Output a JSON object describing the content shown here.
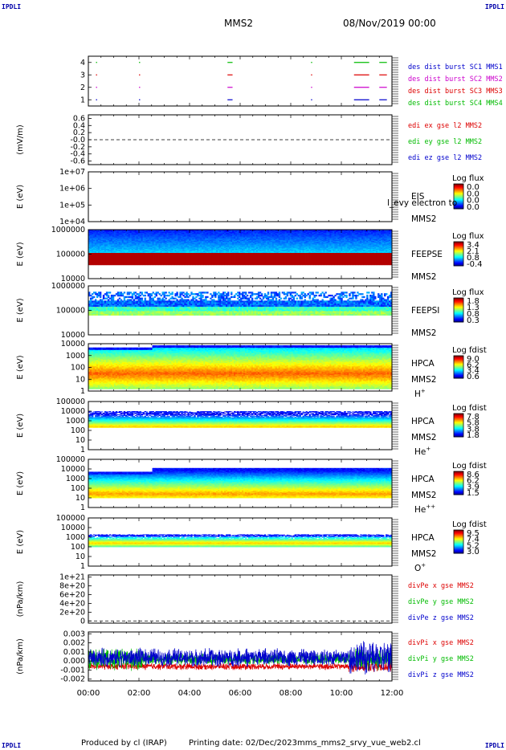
{
  "header": {
    "corner_tl": "IPDLI",
    "corner_tr": "IPDLI",
    "corner_bl": "IPDLI",
    "corner_br": "IPDLI",
    "spacecraft": "MMS2",
    "datetime": "08/Nov/2019 00:00"
  },
  "footer": {
    "producer": "Produced by cl (IRAP)",
    "printing_date": "Printing date: 02/Dec/2023",
    "filename": "mms_mms2_srvy_vue_web2.cl"
  },
  "time_axis": {
    "range_hours": [
      0,
      12
    ],
    "ticks": [
      "00:00",
      "02:00",
      "04:00",
      "06:00",
      "08:00",
      "10:00",
      "12:00"
    ]
  },
  "colors": {
    "blue": "#0000cc",
    "magenta": "#cc00cc",
    "red": "#dd0000",
    "green": "#00bb00"
  },
  "chart_data": [
    {
      "type": "scatter",
      "id": "burst",
      "ylim": [
        0.5,
        4.5
      ],
      "yticks": [
        "1",
        "2",
        "3",
        "4"
      ],
      "legend": [
        {
          "text": "des dist burst SC1 MMS1",
          "color": "#0000cc"
        },
        {
          "text": "des dist burst SC2 MMS2",
          "color": "#cc00cc"
        },
        {
          "text": "des dist burst SC3 MMS3",
          "color": "#dd0000"
        },
        {
          "text": "des dist burst SC4 MMS4",
          "color": "#00bb00"
        }
      ],
      "series": [
        {
          "level": 1,
          "color": "#0000cc",
          "intervals": [
            [
              0.3,
              0.33
            ],
            [
              2.0,
              2.03
            ],
            [
              5.5,
              5.7
            ],
            [
              8.8,
              8.83
            ],
            [
              10.5,
              11.1
            ],
            [
              11.5,
              11.8
            ]
          ]
        },
        {
          "level": 2,
          "color": "#cc00cc",
          "intervals": [
            [
              0.3,
              0.33
            ],
            [
              2.0,
              2.03
            ],
            [
              5.5,
              5.7
            ],
            [
              8.8,
              8.83
            ],
            [
              10.5,
              11.1
            ],
            [
              11.5,
              11.8
            ]
          ]
        },
        {
          "level": 3,
          "color": "#dd0000",
          "intervals": [
            [
              0.3,
              0.33
            ],
            [
              2.0,
              2.03
            ],
            [
              5.5,
              5.7
            ],
            [
              8.8,
              8.83
            ],
            [
              10.5,
              11.1
            ],
            [
              11.5,
              11.8
            ]
          ]
        },
        {
          "level": 4,
          "color": "#00bb00",
          "intervals": [
            [
              0.3,
              0.33
            ],
            [
              2.0,
              2.03
            ],
            [
              5.5,
              5.7
            ],
            [
              8.8,
              8.83
            ],
            [
              10.5,
              11.1
            ],
            [
              11.5,
              11.8
            ]
          ]
        }
      ]
    },
    {
      "type": "line",
      "id": "edi",
      "ylabel": "(mV/m)",
      "ylim": [
        -0.7,
        0.7
      ],
      "yticks": [
        "0.6",
        "0.4",
        "0.2",
        "-0.0",
        "-0.2",
        "-0.4",
        "-0.6"
      ],
      "ytick_values": [
        0.6,
        0.4,
        0.2,
        0,
        -0.2,
        -0.4,
        -0.6
      ],
      "legend": [
        {
          "text": "edi ex gse l2 MMS2",
          "color": "#dd0000"
        },
        {
          "text": "edi ey gse l2 MMS2",
          "color": "#00bb00"
        },
        {
          "text": "edi ez gse l2 MMS2",
          "color": "#0000cc"
        }
      ],
      "dashed_zero": true
    },
    {
      "type": "heatmap",
      "id": "eis",
      "ylabel": "E (eV)",
      "yticks": [
        "1e+07",
        "1e+06",
        "1e+05",
        "1e+04"
      ],
      "log_range": [
        4,
        7
      ],
      "label_lines": [
        "EIS",
        "MMS2"
      ],
      "overlay_text": "l_evy electron to",
      "colorbar": {
        "title": "Log flux",
        "ticks": [
          "0.0",
          "0.0",
          "0.0",
          "0.0"
        ]
      }
    },
    {
      "type": "heatmap",
      "id": "feepse",
      "ylabel": "E (eV)",
      "yticks": [
        "1000000",
        "100000",
        "10000"
      ],
      "log_range": [
        4,
        6
      ],
      "label_lines": [
        "FEEPSE",
        "MMS2"
      ],
      "colorbar": {
        "title": "Log flux",
        "ticks": [
          "3.4",
          "2.1",
          "0.8",
          "-0.4"
        ]
      }
    },
    {
      "type": "heatmap",
      "id": "feepsi",
      "ylabel": "E (eV)",
      "yticks": [
        "1000000",
        "100000",
        "10000"
      ],
      "log_range": [
        4,
        6
      ],
      "label_lines": [
        "FEEPSI",
        "MMS2"
      ],
      "colorbar": {
        "title": "Log flux",
        "ticks": [
          "1.8",
          "1.3",
          "0.8",
          "0.3"
        ]
      }
    },
    {
      "type": "heatmap",
      "id": "hpca_h",
      "ylabel": "E (eV)",
      "yticks": [
        "10000",
        "1000",
        "100",
        "10",
        "1"
      ],
      "log_range": [
        0,
        4.4
      ],
      "label_lines": [
        "HPCA",
        "MMS2"
      ],
      "species": "H",
      "species_charge": "+",
      "colorbar": {
        "title": "Log fdist",
        "ticks": [
          "9.0",
          "6.2",
          "3.4",
          "0.6"
        ]
      }
    },
    {
      "type": "heatmap",
      "id": "hpca_he1",
      "ylabel": "E (eV)",
      "yticks": [
        "100000",
        "10000",
        "1000",
        "100",
        "10",
        "1"
      ],
      "log_range": [
        0,
        5
      ],
      "label_lines": [
        "HPCA",
        "MMS2"
      ],
      "species": "He",
      "species_charge": "+",
      "colorbar": {
        "title": "Log fdist",
        "ticks": [
          "7.8",
          "5.8",
          "3.8",
          "1.8"
        ]
      }
    },
    {
      "type": "heatmap",
      "id": "hpca_he2",
      "ylabel": "E (eV)",
      "yticks": [
        "100000",
        "10000",
        "1000",
        "100",
        "10",
        "1"
      ],
      "log_range": [
        0,
        5
      ],
      "label_lines": [
        "HPCA",
        "MMS2"
      ],
      "species": "He",
      "species_charge": "++",
      "colorbar": {
        "title": "Log fdist",
        "ticks": [
          "8.6",
          "6.2",
          "3.9",
          "1.5"
        ]
      }
    },
    {
      "type": "heatmap",
      "id": "hpca_o",
      "ylabel": "E (eV)",
      "yticks": [
        "100000",
        "10000",
        "1000",
        "100",
        "10",
        "1"
      ],
      "log_range": [
        0,
        5
      ],
      "label_lines": [
        "HPCA",
        "MMS2"
      ],
      "species": "O",
      "species_charge": "+",
      "colorbar": {
        "title": "Log fdist",
        "ticks": [
          "9.5",
          "7.4",
          "5.2",
          "3.0"
        ]
      }
    },
    {
      "type": "line",
      "id": "divpe",
      "ylabel": "(nPa/km)",
      "ylim": [
        -5e+19,
        1.05e+21
      ],
      "yticks": [
        "1e+21",
        "8e+20",
        "6e+20",
        "4e+20",
        "2e+20",
        "0"
      ],
      "ytick_values": [
        1e+21,
        8e+20,
        6e+20,
        4e+20,
        2e+20,
        0
      ],
      "legend": [
        {
          "text": "divPe x gse MMS2",
          "color": "#dd0000"
        },
        {
          "text": "divPe y gse MMS2",
          "color": "#00bb00"
        },
        {
          "text": "divPe z gse MMS2",
          "color": "#0000cc"
        }
      ],
      "dashed_zero": true
    },
    {
      "type": "line",
      "id": "divpi",
      "ylabel": "(nPa/km)",
      "ylim": [
        -0.0022,
        0.0032
      ],
      "yticks": [
        "0.003",
        "0.002",
        "0.001",
        "0.000",
        "-0.001",
        "-0.002"
      ],
      "ytick_values": [
        0.003,
        0.002,
        0.001,
        0,
        -0.001,
        -0.002
      ],
      "legend": [
        {
          "text": "divPi x gse MMS2",
          "color": "#dd0000"
        },
        {
          "text": "divPi y gse MMS2",
          "color": "#00bb00"
        },
        {
          "text": "divPi z gse MMS2",
          "color": "#0000cc"
        }
      ],
      "series": [
        {
          "name": "divPi x gse MMS2",
          "color": "#dd0000",
          "mean": -0.0006,
          "spread": 0.0003
        },
        {
          "name": "divPi y gse MMS2",
          "color": "#00bb00",
          "mean": 0.0002,
          "spread": 0.0005
        },
        {
          "name": "divPi z gse MMS2",
          "color": "#0000cc",
          "mean": 0.0004,
          "spread": 0.0008
        }
      ]
    }
  ]
}
